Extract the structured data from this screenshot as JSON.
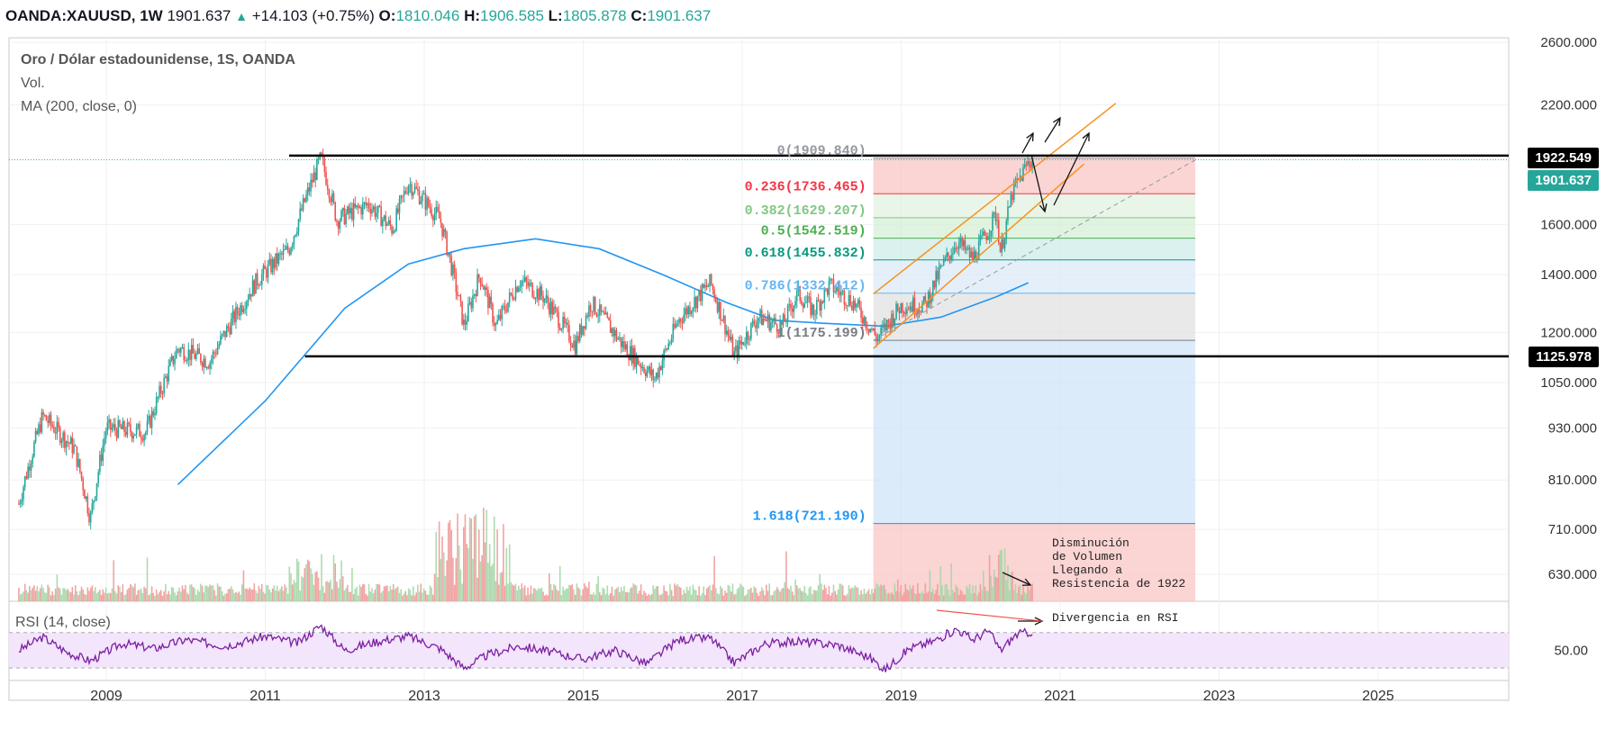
{
  "header": {
    "symbol": "OANDA:XAUUSD, 1W",
    "last": "1901.637",
    "change": "+14.103 (+0.75%)",
    "o_label": "O:",
    "o_value": "1810.046",
    "h_label": "H:",
    "h_value": "1906.585",
    "l_label": "L:",
    "l_value": "1805.878",
    "c_label": "C:",
    "c_value": "1901.637"
  },
  "legend": {
    "title": "Oro / Dólar estadounidense, 1S, OANDA",
    "volume": "Vol.",
    "ma": "MA (200, close, 0)",
    "rsi": "RSI (14, close)"
  },
  "price_tags": [
    {
      "label": "1922.549",
      "color": "#000000"
    },
    {
      "label": "1901.637",
      "color": "#26a69a"
    },
    {
      "label": "1125.978",
      "color": "#000000"
    }
  ],
  "chart_data": {
    "type": "candlestick",
    "price_axis": {
      "scale": "log",
      "ticks": [
        "2600.000",
        "2200.000",
        "1600.000",
        "1400.000",
        "1200.000",
        "1050.000",
        "930.000",
        "810.000",
        "710.000",
        "630.000"
      ]
    },
    "rsi_axis": {
      "ticks": [
        "50.00"
      ]
    },
    "x_axis": {
      "ticks": [
        "2009",
        "2011",
        "2013",
        "2015",
        "2017",
        "2019",
        "2021",
        "2023",
        "2025"
      ]
    },
    "price_path": [
      [
        "2007.9",
        760
      ],
      [
        "2008.2",
        960
      ],
      [
        "2008.6",
        880
      ],
      [
        "2008.8",
        730
      ],
      [
        "2009.0",
        930
      ],
      [
        "2009.5",
        920
      ],
      [
        "2009.9",
        1150
      ],
      [
        "2010.3",
        1110
      ],
      [
        "2010.9",
        1380
      ],
      [
        "2011.3",
        1500
      ],
      [
        "2011.7",
        1910
      ],
      [
        "2011.9",
        1620
      ],
      [
        "2012.3",
        1690
      ],
      [
        "2012.6",
        1580
      ],
      [
        "2012.8",
        1790
      ],
      [
        "2013.2",
        1620
      ],
      [
        "2013.5",
        1220
      ],
      [
        "2013.7",
        1400
      ],
      [
        "2013.9",
        1220
      ],
      [
        "2014.2",
        1380
      ],
      [
        "2014.5",
        1320
      ],
      [
        "2014.9",
        1160
      ],
      [
        "2015.1",
        1300
      ],
      [
        "2015.5",
        1160
      ],
      [
        "2015.9",
        1060
      ],
      [
        "2016.2",
        1240
      ],
      [
        "2016.6",
        1370
      ],
      [
        "2016.9",
        1130
      ],
      [
        "2017.2",
        1250
      ],
      [
        "2017.5",
        1220
      ],
      [
        "2017.7",
        1330
      ],
      [
        "2017.9",
        1270
      ],
      [
        "2018.1",
        1360
      ],
      [
        "2018.4",
        1300
      ],
      [
        "2018.7",
        1180
      ],
      [
        "2019.0",
        1290
      ],
      [
        "2019.3",
        1290
      ],
      [
        "2019.5",
        1420
      ],
      [
        "2019.7",
        1530
      ],
      [
        "2019.9",
        1460
      ],
      [
        "2020.1",
        1580
      ],
      [
        "2020.2",
        1650
      ],
      [
        "2020.25",
        1480
      ],
      [
        "2020.4",
        1740
      ],
      [
        "2020.6",
        1890
      ],
      [
        "2020.65",
        1901.637
      ]
    ],
    "ma200_path": [
      [
        "2009.9",
        800
      ],
      [
        "2011.0",
        1000
      ],
      [
        "2012.0",
        1280
      ],
      [
        "2012.8",
        1440
      ],
      [
        "2013.5",
        1500
      ],
      [
        "2014.4",
        1540
      ],
      [
        "2015.2",
        1500
      ],
      [
        "2016.0",
        1400
      ],
      [
        "2016.8",
        1300
      ],
      [
        "2017.4",
        1240
      ],
      [
        "2018.0",
        1230
      ],
      [
        "2018.8",
        1220
      ],
      [
        "2019.5",
        1250
      ],
      [
        "2020.2",
        1320
      ],
      [
        "2020.6",
        1370
      ]
    ],
    "rsi_path": [
      [
        "2007.9",
        50
      ],
      [
        "2008.2",
        65
      ],
      [
        "2008.5",
        48
      ],
      [
        "2008.8",
        38
      ],
      [
        "2009.2",
        58
      ],
      [
        "2009.6",
        52
      ],
      [
        "2010.0",
        62
      ],
      [
        "2010.5",
        55
      ],
      [
        "2011.0",
        66
      ],
      [
        "2011.4",
        58
      ],
      [
        "2011.7",
        78
      ],
      [
        "2012.0",
        50
      ],
      [
        "2012.4",
        60
      ],
      [
        "2012.8",
        66
      ],
      [
        "2013.2",
        52
      ],
      [
        "2013.5",
        30
      ],
      [
        "2013.8",
        45
      ],
      [
        "2014.2",
        55
      ],
      [
        "2014.6",
        48
      ],
      [
        "2015.0",
        40
      ],
      [
        "2015.4",
        50
      ],
      [
        "2015.8",
        35
      ],
      [
        "2016.2",
        62
      ],
      [
        "2016.6",
        64
      ],
      [
        "2016.9",
        36
      ],
      [
        "2017.3",
        58
      ],
      [
        "2017.7",
        60
      ],
      [
        "2018.2",
        56
      ],
      [
        "2018.6",
        42
      ],
      [
        "2018.8",
        28
      ],
      [
        "2019.1",
        52
      ],
      [
        "2019.4",
        60
      ],
      [
        "2019.7",
        74
      ],
      [
        "2019.9",
        62
      ],
      [
        "2020.1",
        72
      ],
      [
        "2020.25",
        50
      ],
      [
        "2020.45",
        68
      ],
      [
        "2020.65",
        71
      ]
    ],
    "horizontal_lines": [
      {
        "price": 1922.549,
        "from": "2011.3",
        "to": "end"
      },
      {
        "price": 1125.978,
        "from": "2011.5",
        "to": "end"
      }
    ],
    "fibonacci": {
      "from": "2018.65",
      "to": "2022.7",
      "levels": [
        {
          "ratio": "0",
          "price": 1909.84,
          "label": "0(1909.840)",
          "color": "#9598a1"
        },
        {
          "ratio": "0.236",
          "price": 1736.465,
          "label": "0.236(1736.465)",
          "color": "#f23645"
        },
        {
          "ratio": "0.382",
          "price": 1629.207,
          "label": "0.382(1629.207)",
          "color": "#81c784"
        },
        {
          "ratio": "0.5",
          "price": 1542.519,
          "label": "0.5(1542.519)",
          "color": "#4caf50"
        },
        {
          "ratio": "0.618",
          "price": 1455.832,
          "label": "0.618(1455.832)",
          "color": "#089981"
        },
        {
          "ratio": "0.786",
          "price": 1332.412,
          "label": "0.786(1332.412)",
          "color": "#64b5f6"
        },
        {
          "ratio": "1",
          "price": 1175.199,
          "label": "1(1175.199)",
          "color": "#787b86"
        },
        {
          "ratio": "1.618",
          "price": 721.19,
          "label": "1.618(721.190)",
          "color": "#2196f3"
        }
      ]
    },
    "annotations": [
      {
        "text": [
          "Disminución",
          "de Volumen",
          "Llegando a",
          "Resistencia de 1922"
        ]
      },
      {
        "text": [
          "Divergencia en RSI"
        ]
      }
    ]
  }
}
